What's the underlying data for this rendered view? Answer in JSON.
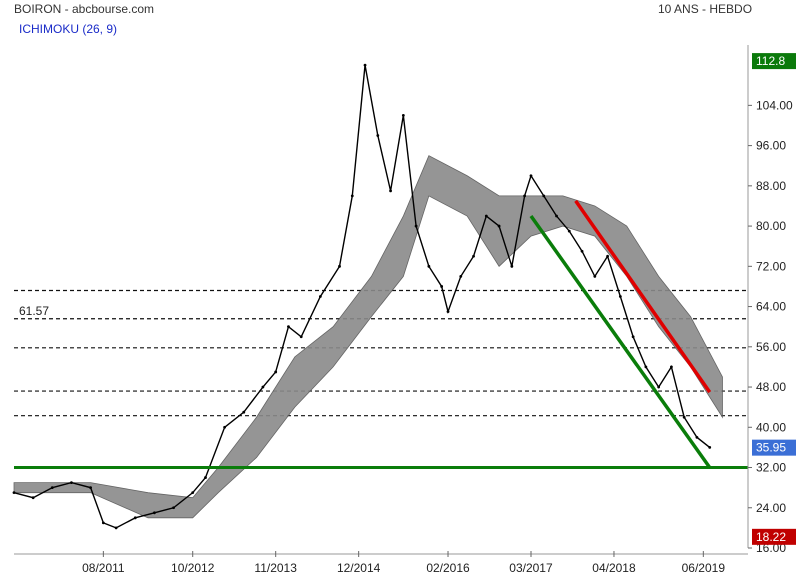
{
  "header": {
    "title": "BOIRON - abcbourse.com",
    "period": "10 ANS - HEBDO",
    "indicator": "ICHIMOKU (26, 9)"
  },
  "chart_data": {
    "type": "line",
    "title": "BOIRON - abcbourse.com",
    "subtitle": "10 ANS - HEBDO",
    "indicator": "ICHIMOKU (26, 9)",
    "ylim": [
      16,
      116
    ],
    "y_ticks": [
      16,
      24,
      32,
      40,
      48,
      56,
      64,
      72,
      80,
      88,
      96,
      104
    ],
    "y_tick_labels": [
      "16.00",
      "24.00",
      "32.00",
      "40.00",
      "48.00",
      "56.00",
      "64.00",
      "72.00",
      "80.00",
      "88.00",
      "96.00",
      "104.00"
    ],
    "x_ticks": [
      "08/2011",
      "10/2012",
      "11/2013",
      "12/2014",
      "02/2016",
      "03/2017",
      "04/2018",
      "06/2019"
    ],
    "last_price": 35.95,
    "max_price": 112.8,
    "min_price": 18.22,
    "price_markers": [
      {
        "label": "112.8",
        "value": 112.8,
        "color": "#0b7a0b"
      },
      {
        "label": "35.95",
        "value": 35.95,
        "color": "#3b6fd6"
      },
      {
        "label": "18.22",
        "value": 18.22,
        "color": "#c00000"
      }
    ],
    "fib_levels": [
      {
        "value": 67.2,
        "label": ""
      },
      {
        "value": 61.57,
        "label": "61.57"
      },
      {
        "value": 55.8,
        "label": ""
      },
      {
        "value": 47.2,
        "label": ""
      },
      {
        "value": 42.3,
        "label": ""
      }
    ],
    "colors": {
      "price": "#000000",
      "cloud": "#8a8a8a",
      "support": "#0a7d0a",
      "channel_green": "#0a7d0a",
      "channel_red": "#e00000"
    },
    "price_series": [
      {
        "x": "2010-06",
        "y": 27
      },
      {
        "x": "2010-09",
        "y": 26
      },
      {
        "x": "2010-12",
        "y": 28
      },
      {
        "x": "2011-03",
        "y": 29
      },
      {
        "x": "2011-06",
        "y": 28
      },
      {
        "x": "2011-08",
        "y": 21
      },
      {
        "x": "2011-10",
        "y": 20
      },
      {
        "x": "2012-01",
        "y": 22
      },
      {
        "x": "2012-04",
        "y": 23
      },
      {
        "x": "2012-07",
        "y": 24
      },
      {
        "x": "2012-10",
        "y": 27
      },
      {
        "x": "2012-12",
        "y": 30
      },
      {
        "x": "2013-03",
        "y": 40
      },
      {
        "x": "2013-06",
        "y": 43
      },
      {
        "x": "2013-09",
        "y": 48
      },
      {
        "x": "2013-11",
        "y": 51
      },
      {
        "x": "2014-01",
        "y": 60
      },
      {
        "x": "2014-03",
        "y": 58
      },
      {
        "x": "2014-06",
        "y": 66
      },
      {
        "x": "2014-09",
        "y": 72
      },
      {
        "x": "2014-11",
        "y": 86
      },
      {
        "x": "2015-01",
        "y": 112
      },
      {
        "x": "2015-03",
        "y": 98
      },
      {
        "x": "2015-05",
        "y": 87
      },
      {
        "x": "2015-07",
        "y": 102
      },
      {
        "x": "2015-09",
        "y": 80
      },
      {
        "x": "2015-11",
        "y": 72
      },
      {
        "x": "2016-01",
        "y": 68
      },
      {
        "x": "2016-02",
        "y": 63
      },
      {
        "x": "2016-04",
        "y": 70
      },
      {
        "x": "2016-06",
        "y": 74
      },
      {
        "x": "2016-08",
        "y": 82
      },
      {
        "x": "2016-10",
        "y": 80
      },
      {
        "x": "2016-12",
        "y": 72
      },
      {
        "x": "2017-02",
        "y": 86
      },
      {
        "x": "2017-03",
        "y": 90
      },
      {
        "x": "2017-05",
        "y": 86
      },
      {
        "x": "2017-07",
        "y": 82
      },
      {
        "x": "2017-09",
        "y": 79
      },
      {
        "x": "2017-11",
        "y": 75
      },
      {
        "x": "2018-01",
        "y": 70
      },
      {
        "x": "2018-03",
        "y": 74
      },
      {
        "x": "2018-05",
        "y": 66
      },
      {
        "x": "2018-07",
        "y": 58
      },
      {
        "x": "2018-09",
        "y": 52
      },
      {
        "x": "2018-11",
        "y": 48
      },
      {
        "x": "2019-01",
        "y": 52
      },
      {
        "x": "2019-03",
        "y": 42
      },
      {
        "x": "2019-05",
        "y": 38
      },
      {
        "x": "2019-07",
        "y": 36
      }
    ],
    "cloud": [
      {
        "x": "2010-06",
        "a": 27,
        "b": 29
      },
      {
        "x": "2011-06",
        "a": 27,
        "b": 29
      },
      {
        "x": "2012-03",
        "a": 22,
        "b": 27
      },
      {
        "x": "2012-10",
        "a": 22,
        "b": 26
      },
      {
        "x": "2013-02",
        "a": 27,
        "b": 32
      },
      {
        "x": "2013-08",
        "a": 34,
        "b": 42
      },
      {
        "x": "2014-02",
        "a": 44,
        "b": 54
      },
      {
        "x": "2014-08",
        "a": 52,
        "b": 60
      },
      {
        "x": "2015-02",
        "a": 62,
        "b": 70
      },
      {
        "x": "2015-07",
        "a": 70,
        "b": 82
      },
      {
        "x": "2015-11",
        "a": 86,
        "b": 94
      },
      {
        "x": "2016-05",
        "a": 82,
        "b": 90
      },
      {
        "x": "2016-10",
        "a": 72,
        "b": 86
      },
      {
        "x": "2017-03",
        "a": 78,
        "b": 86
      },
      {
        "x": "2017-08",
        "a": 80,
        "b": 86
      },
      {
        "x": "2018-01",
        "a": 78,
        "b": 84
      },
      {
        "x": "2018-06",
        "a": 70,
        "b": 80
      },
      {
        "x": "2018-11",
        "a": 60,
        "b": 70
      },
      {
        "x": "2019-04",
        "a": 52,
        "b": 62
      },
      {
        "x": "2019-09",
        "a": 42,
        "b": 50
      }
    ],
    "trendlines": [
      {
        "name": "support",
        "color": "green",
        "from": {
          "x": "2010-06",
          "y": 32
        },
        "to": {
          "x": "2020-01",
          "y": 32
        }
      },
      {
        "name": "channel-low",
        "color": "green",
        "from": {
          "x": "2017-03",
          "y": 82
        },
        "to": {
          "x": "2019-07",
          "y": 32
        }
      },
      {
        "name": "channel-high",
        "color": "red",
        "from": {
          "x": "2017-10",
          "y": 85
        },
        "to": {
          "x": "2019-07",
          "y": 47
        }
      }
    ]
  }
}
